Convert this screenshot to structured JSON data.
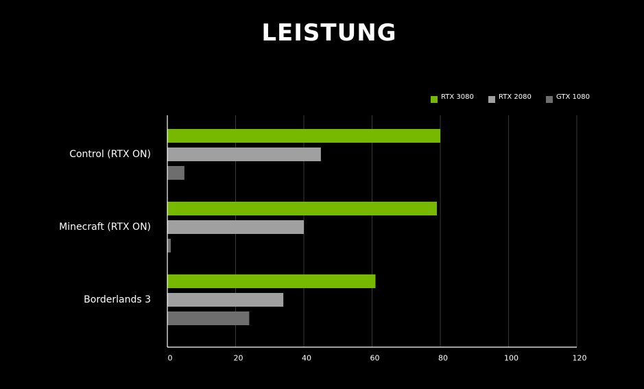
{
  "chart_data": {
    "type": "bar",
    "orientation": "horizontal",
    "title": "LEISTUNG",
    "categories": [
      "Control (RTX ON)",
      "Minecraft (RTX ON)",
      "Borderlands 3"
    ],
    "series": [
      {
        "name": "RTX 3080",
        "color": "#76b900",
        "values": [
          80,
          79,
          61
        ]
      },
      {
        "name": "RTX 2080",
        "color": "#a0a0a0",
        "values": [
          45,
          40,
          34
        ]
      },
      {
        "name": "GTX 1080",
        "color": "#6e6e6e",
        "values": [
          5,
          1,
          24
        ]
      }
    ],
    "x_ticks": [
      "0",
      "20",
      "40",
      "60",
      "80",
      "100",
      "120"
    ],
    "xlim": [
      0,
      120
    ],
    "grid": true,
    "legend_position": "top-right"
  }
}
